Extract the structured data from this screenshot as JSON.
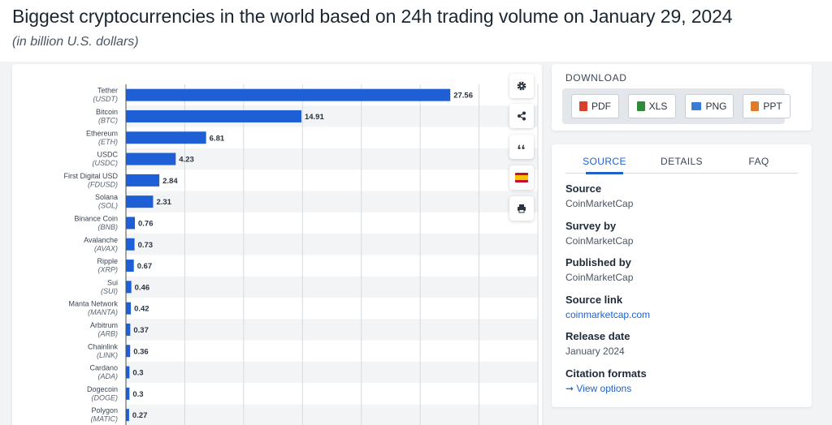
{
  "header": {
    "title": "Biggest cryptocurrencies in the world based on 24h trading volume on January 29, 2024",
    "subtitle": "(in billion U.S. dollars)"
  },
  "chart_data": {
    "type": "bar",
    "orientation": "horizontal",
    "categories": [
      {
        "name": "Tether",
        "ticker": "(USDT)"
      },
      {
        "name": "Bitcoin",
        "ticker": "(BTC)"
      },
      {
        "name": "Ethereum",
        "ticker": "(ETH)"
      },
      {
        "name": "USDC",
        "ticker": "(USDC)"
      },
      {
        "name": "First Digital USD",
        "ticker": "(FDUSD)"
      },
      {
        "name": "Solana",
        "ticker": "(SOL)"
      },
      {
        "name": "Binance Coin",
        "ticker": "(BNB)"
      },
      {
        "name": "Avalanche",
        "ticker": "(AVAX)"
      },
      {
        "name": "Ripple",
        "ticker": "(XRP)"
      },
      {
        "name": "Sui",
        "ticker": "(SUI)"
      },
      {
        "name": "Manta Network",
        "ticker": "(MANTA)"
      },
      {
        "name": "Arbitrum",
        "ticker": "(ARB)"
      },
      {
        "name": "Chainlink",
        "ticker": "(LINK)"
      },
      {
        "name": "Cardano",
        "ticker": "(ADA)"
      },
      {
        "name": "Dogecoin",
        "ticker": "(DOGE)"
      },
      {
        "name": "Polygon",
        "ticker": "(MATIC)"
      }
    ],
    "values": [
      27.56,
      14.91,
      6.81,
      4.23,
      2.84,
      2.31,
      0.76,
      0.73,
      0.67,
      0.46,
      0.42,
      0.37,
      0.36,
      0.3,
      0.3,
      0.27
    ],
    "value_labels": [
      "27.56",
      "14.91",
      "6.81",
      "4.23",
      "2.84",
      "2.31",
      "0.76",
      "0.73",
      "0.67",
      "0.46",
      "0.42",
      "0.37",
      "0.36",
      "0.3",
      "0.3",
      "0.27"
    ],
    "xlim": [
      0,
      35
    ],
    "grid": true,
    "bar_color": "#1f5fd6"
  },
  "toolbar": {
    "icons": [
      "gear-icon",
      "share-icon",
      "quote-icon",
      "flag-spain-icon",
      "print-icon"
    ]
  },
  "download": {
    "title": "DOWNLOAD",
    "buttons": [
      {
        "label": "PDF",
        "icon": "pdf-file-icon",
        "color": "#d9412b"
      },
      {
        "label": "XLS",
        "icon": "xls-file-icon",
        "color": "#2f8a3a"
      },
      {
        "label": "PNG",
        "icon": "png-file-icon",
        "color": "#3a7bd5"
      },
      {
        "label": "PPT",
        "icon": "ppt-file-icon",
        "color": "#e07a2a"
      }
    ]
  },
  "source_panel": {
    "tabs": [
      "SOURCE",
      "DETAILS",
      "FAQ"
    ],
    "active_tab": "SOURCE",
    "source_label": "Source",
    "source_value": "CoinMarketCap",
    "survey_label": "Survey by",
    "survey_value": "CoinMarketCap",
    "published_label": "Published by",
    "published_value": "CoinMarketCap",
    "link_label": "Source link",
    "link_value": "coinmarketcap.com",
    "release_label": "Release date",
    "release_value": "January 2024",
    "citation_label": "Citation formats",
    "citation_link": "View options"
  },
  "colors": {
    "accent": "#1f62c9",
    "bar": "#1f5fd6"
  }
}
